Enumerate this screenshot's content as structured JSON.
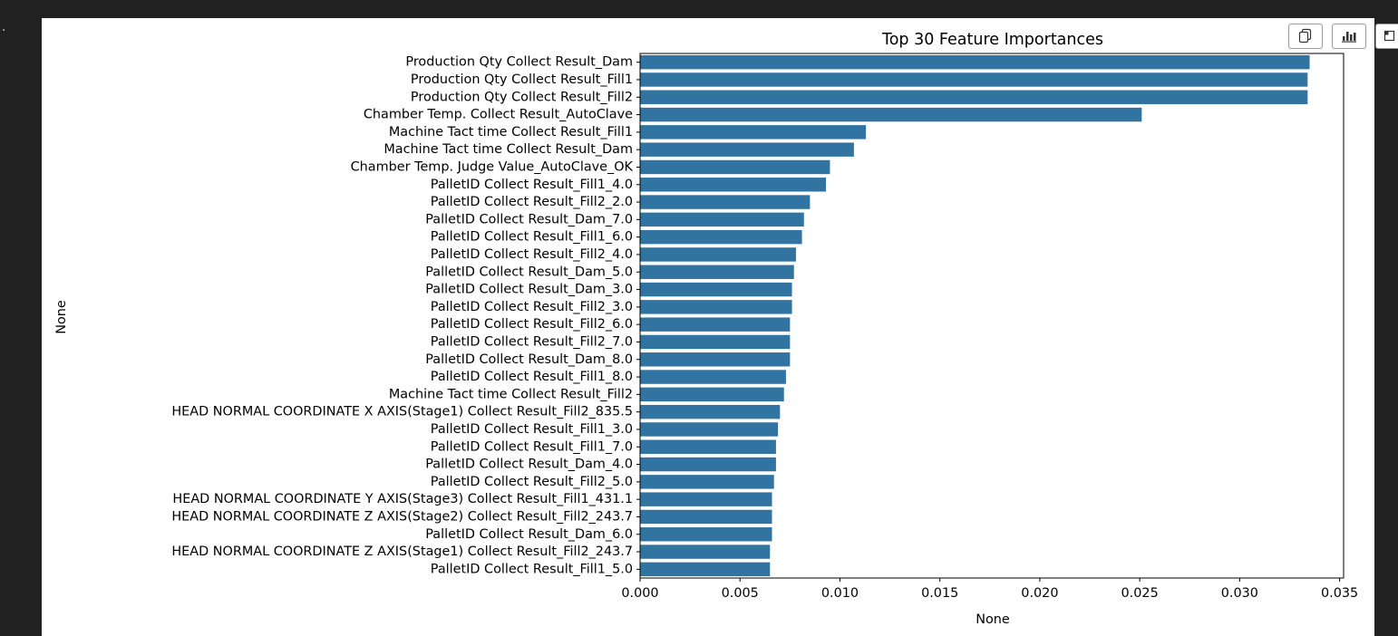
{
  "toolbar": {
    "copy_icon": "copy-icon",
    "chart_icon": "bar-chart-icon",
    "expand_icon": "expand-icon"
  },
  "chart_data": {
    "type": "bar",
    "orientation": "horizontal",
    "title": "Top 30 Feature Importances",
    "xlabel": "None",
    "ylabel": "None",
    "xlim": [
      0,
      0.0352
    ],
    "xticks": [
      0.0,
      0.005,
      0.01,
      0.015,
      0.02,
      0.025,
      0.03,
      0.035
    ],
    "xtick_labels": [
      "0.000",
      "0.005",
      "0.010",
      "0.015",
      "0.020",
      "0.025",
      "0.030",
      "0.035"
    ],
    "bar_color": "#3274a1",
    "grid": false,
    "categories": [
      "Production Qty Collect Result_Dam",
      "Production Qty Collect Result_Fill1",
      "Production Qty Collect Result_Fill2",
      "Chamber Temp. Collect Result_AutoClave",
      "Machine Tact time Collect Result_Fill1",
      "Machine Tact time Collect Result_Dam",
      "Chamber Temp. Judge Value_AutoClave_OK",
      "PalletID Collect Result_Fill1_4.0",
      "PalletID Collect Result_Fill2_2.0",
      "PalletID Collect Result_Dam_7.0",
      "PalletID Collect Result_Fill1_6.0",
      "PalletID Collect Result_Fill2_4.0",
      "PalletID Collect Result_Dam_5.0",
      "PalletID Collect Result_Dam_3.0",
      "PalletID Collect Result_Fill2_3.0",
      "PalletID Collect Result_Fill2_6.0",
      "PalletID Collect Result_Fill2_7.0",
      "PalletID Collect Result_Dam_8.0",
      "PalletID Collect Result_Fill1_8.0",
      "Machine Tact time Collect Result_Fill2",
      "HEAD NORMAL COORDINATE X AXIS(Stage1) Collect Result_Fill2_835.5",
      "PalletID Collect Result_Fill1_3.0",
      "PalletID Collect Result_Fill1_7.0",
      "PalletID Collect Result_Dam_4.0",
      "PalletID Collect Result_Fill2_5.0",
      "HEAD NORMAL COORDINATE Y AXIS(Stage3) Collect Result_Fill1_431.1",
      "HEAD NORMAL COORDINATE Z AXIS(Stage2) Collect Result_Fill2_243.7",
      "PalletID Collect Result_Dam_6.0",
      "HEAD NORMAL COORDINATE Z AXIS(Stage1) Collect Result_Fill2_243.7",
      "PalletID Collect Result_Fill1_5.0"
    ],
    "values": [
      0.0335,
      0.0334,
      0.0334,
      0.0251,
      0.0113,
      0.0107,
      0.0095,
      0.0093,
      0.0085,
      0.0082,
      0.0081,
      0.0078,
      0.0077,
      0.0076,
      0.0076,
      0.0075,
      0.0075,
      0.0075,
      0.0073,
      0.0072,
      0.007,
      0.0069,
      0.0068,
      0.0068,
      0.0067,
      0.0066,
      0.0066,
      0.0066,
      0.0065,
      0.0065
    ]
  }
}
